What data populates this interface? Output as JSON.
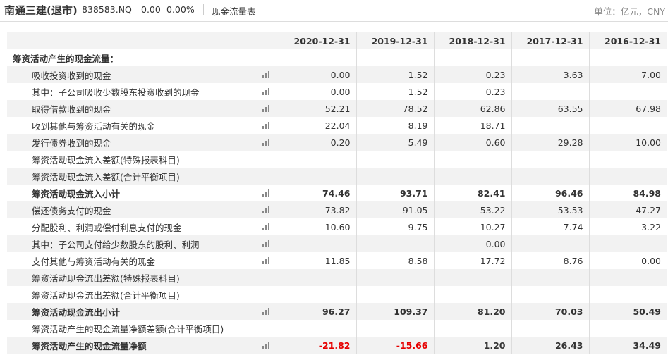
{
  "header": {
    "name": "南通三建(退市)",
    "code": "838583.NQ",
    "price": "0.00",
    "change": "0.00%",
    "tab": "现金流量表",
    "unit": "单位：亿元，CNY"
  },
  "table": {
    "columns": [
      "2020-12-31",
      "2019-12-31",
      "2018-12-31",
      "2017-12-31",
      "2016-12-31"
    ],
    "section": "筹资活动产生的现金流量：",
    "rows": [
      {
        "label": "吸收投资收到的现金",
        "values": [
          "0.00",
          "1.52",
          "0.23",
          "3.63",
          "7.00"
        ]
      },
      {
        "label": "其中：子公司吸收少数股东投资收到的现金",
        "values": [
          "0.00",
          "1.52",
          "0.23",
          null,
          null
        ]
      },
      {
        "label": "取得借款收到的现金",
        "values": [
          "52.21",
          "78.52",
          "62.86",
          "63.55",
          "67.98"
        ]
      },
      {
        "label": "收到其他与筹资活动有关的现金",
        "values": [
          "22.04",
          "8.19",
          "18.71",
          null,
          null
        ]
      },
      {
        "label": "发行债券收到的现金",
        "values": [
          "0.20",
          "5.49",
          "0.60",
          "29.28",
          "10.00"
        ]
      },
      {
        "label": "筹资活动现金流入差额(特殊报表科目)",
        "values": [
          null,
          null,
          null,
          null,
          null
        ]
      },
      {
        "label": "筹资活动现金流入差额(合计平衡项目)",
        "values": [
          null,
          null,
          null,
          null,
          null
        ]
      },
      {
        "label": "筹资活动现金流入小计",
        "bold": true,
        "values": [
          "74.46",
          "93.71",
          "82.41",
          "96.46",
          "84.98"
        ]
      },
      {
        "label": "偿还债务支付的现金",
        "values": [
          "73.82",
          "91.05",
          "53.22",
          "53.53",
          "47.27"
        ]
      },
      {
        "label": "分配股利、利润或偿付利息支付的现金",
        "values": [
          "10.60",
          "9.75",
          "10.27",
          "7.74",
          "3.22"
        ]
      },
      {
        "label": "其中：子公司支付给少数股东的股利、利润",
        "values": [
          null,
          null,
          "0.00",
          null,
          null
        ]
      },
      {
        "label": "支付其他与筹资活动有关的现金",
        "values": [
          "11.85",
          "8.58",
          "17.72",
          "8.76",
          "0.00"
        ]
      },
      {
        "label": "筹资活动现金流出差额(特殊报表科目)",
        "values": [
          null,
          null,
          null,
          null,
          null
        ]
      },
      {
        "label": "筹资活动现金流出差额(合计平衡项目)",
        "values": [
          null,
          null,
          null,
          null,
          null
        ]
      },
      {
        "label": "筹资活动现金流出小计",
        "bold": true,
        "values": [
          "96.27",
          "109.37",
          "81.20",
          "70.03",
          "50.49"
        ]
      },
      {
        "label": "筹资活动产生的现金流量净额差额(合计平衡项目)",
        "values": [
          null,
          null,
          null,
          null,
          null
        ]
      },
      {
        "label": "筹资活动产生的现金流量净额",
        "bold": true,
        "values": [
          "-21.82",
          "-15.66",
          "1.20",
          "26.43",
          "34.49"
        ]
      }
    ]
  }
}
